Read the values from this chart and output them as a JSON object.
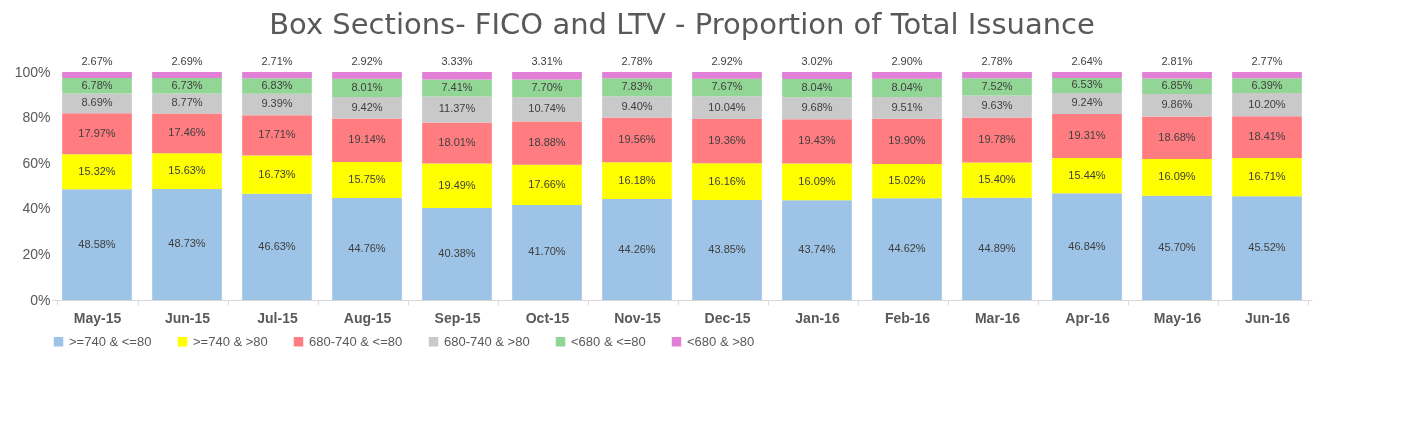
{
  "chart_data": {
    "type": "bar",
    "title": "Box Sections- FICO and LTV - Proportion of Total Issuance",
    "categories": [
      "May-15",
      "Jun-15",
      "Jul-15",
      "Aug-15",
      "Sep-15",
      "Oct-15",
      "Nov-15",
      "Dec-15",
      "Jan-16",
      "Feb-16",
      "Mar-16",
      "Apr-16",
      "May-16",
      "Jun-16"
    ],
    "stacked": true,
    "ylim": [
      0,
      100
    ],
    "yticks": [
      {
        "value": 0,
        "label": "0%"
      },
      {
        "value": 20,
        "label": "20%"
      },
      {
        "value": 40,
        "label": "40%"
      },
      {
        "value": 60,
        "label": "60%"
      },
      {
        "value": 80,
        "label": "80%"
      },
      {
        "value": 100,
        "label": "100%"
      }
    ],
    "legend": "bottom",
    "series": [
      {
        "name": ">=740 & <=80",
        "color": "#9dc3e6",
        "values": [
          48.58,
          48.73,
          46.63,
          44.76,
          40.38,
          41.7,
          44.26,
          43.85,
          43.74,
          44.62,
          44.89,
          46.84,
          45.7,
          45.52
        ],
        "value_labels": [
          "48.58%",
          "48.73%",
          "46.63%",
          "44.76%",
          "40.38%",
          "41.70%",
          "44.26%",
          "43.85%",
          "43.74%",
          "44.62%",
          "44.89%",
          "46.84%",
          "45.70%",
          "45.52%"
        ]
      },
      {
        "name": ">=740 & >80",
        "color": "#ffff00",
        "values": [
          15.32,
          15.63,
          16.73,
          15.75,
          19.49,
          17.66,
          16.18,
          16.16,
          16.09,
          15.02,
          15.4,
          15.44,
          16.09,
          16.71
        ],
        "value_labels": [
          "15.32%",
          "15.63%",
          "16.73%",
          "15.75%",
          "19.49%",
          "17.66%",
          "16.18%",
          "16.16%",
          "16.09%",
          "15.02%",
          "15.40%",
          "15.44%",
          "16.09%",
          "16.71%"
        ]
      },
      {
        "name": "680-740 & <=80",
        "color": "#ff7c80",
        "values": [
          17.97,
          17.46,
          17.71,
          19.14,
          18.01,
          18.88,
          19.56,
          19.36,
          19.43,
          19.9,
          19.78,
          19.31,
          18.68,
          18.41
        ],
        "value_labels": [
          "17.97%",
          "17.46%",
          "17.71%",
          "19.14%",
          "18.01%",
          "18.88%",
          "19.56%",
          "19.36%",
          "19.43%",
          "19.90%",
          "19.78%",
          "19.31%",
          "18.68%",
          "18.41%"
        ]
      },
      {
        "name": "680-740 & >80",
        "color": "#c9c9c9",
        "values": [
          8.69,
          8.77,
          9.39,
          9.42,
          11.37,
          10.74,
          9.4,
          10.04,
          9.68,
          9.51,
          9.63,
          9.24,
          9.86,
          10.2
        ],
        "value_labels": [
          "8.69%",
          "8.77%",
          "9.39%",
          "9.42%",
          "11.37%",
          "10.74%",
          "9.40%",
          "10.04%",
          "9.68%",
          "9.51%",
          "9.63%",
          "9.24%",
          "9.86%",
          "10.20%"
        ]
      },
      {
        "name": "<680 & <=80",
        "color": "#92d695",
        "values": [
          6.78,
          6.73,
          6.83,
          8.01,
          7.41,
          7.7,
          7.83,
          7.67,
          8.04,
          8.04,
          7.52,
          6.53,
          6.85,
          6.39
        ],
        "value_labels": [
          "6.78%",
          "6.73%",
          "6.83%",
          "8.01%",
          "7.41%",
          "7.70%",
          "7.83%",
          "7.67%",
          "8.04%",
          "8.04%",
          "7.52%",
          "6.53%",
          "6.85%",
          "6.39%"
        ]
      },
      {
        "name": "<680 & >80",
        "color": "#e27fd6",
        "values": [
          2.67,
          2.69,
          2.71,
          2.92,
          3.33,
          3.31,
          2.78,
          2.92,
          3.02,
          2.9,
          2.78,
          2.64,
          2.81,
          2.77
        ],
        "value_labels": [
          "2.67%",
          "2.69%",
          "2.71%",
          "2.92%",
          "3.33%",
          "3.31%",
          "2.78%",
          "2.92%",
          "3.02%",
          "2.90%",
          "2.78%",
          "2.64%",
          "2.81%",
          "2.77%"
        ]
      }
    ]
  }
}
